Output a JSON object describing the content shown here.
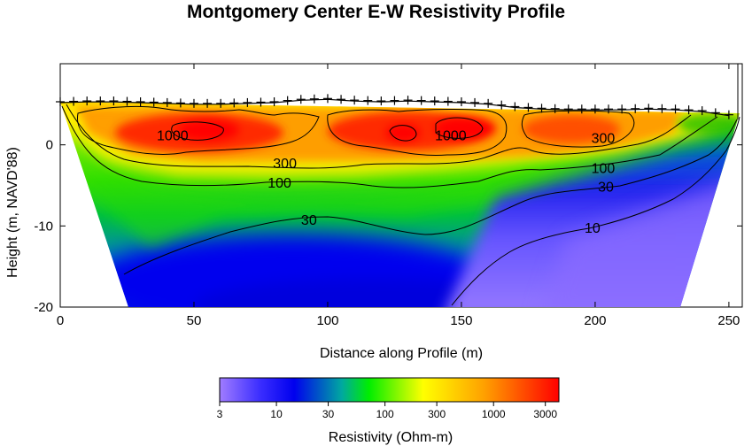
{
  "chart_data": {
    "type": "heatmap",
    "title": "Montgomery Center E-W Resistivity Profile",
    "xlabel": "Distance along Profile (m)",
    "ylabel": "Height (m, NAVD'88)",
    "xlim": [
      0,
      255
    ],
    "ylim": [
      -20,
      10
    ],
    "x_ticks": [
      "0",
      "50",
      "100",
      "150",
      "200",
      "250"
    ],
    "y_ticks": [
      "0",
      "-10",
      "-20"
    ],
    "colorbar": {
      "title": "Resistivity (Ohm-m)",
      "scale": "log",
      "range": [
        3,
        4000
      ],
      "ticks": [
        "3",
        "10",
        "30",
        "100",
        "300",
        "1000",
        "3000"
      ],
      "colors": [
        "#a07cff",
        "#2222ff",
        "#0000ee",
        "#00a8a0",
        "#00ff00",
        "#ffff00",
        "#ffa000",
        "#ff0000"
      ]
    },
    "surface_topography": {
      "x": [
        0,
        10,
        20,
        30,
        40,
        50,
        60,
        70,
        80,
        90,
        100,
        110,
        120,
        130,
        140,
        150,
        160,
        170,
        180,
        190,
        200,
        210,
        220,
        230,
        240,
        250
      ],
      "height": [
        5.2,
        5.3,
        5.3,
        5.2,
        5.1,
        5.0,
        5.0,
        5.1,
        5.2,
        5.5,
        5.6,
        5.4,
        5.3,
        5.4,
        5.3,
        5.2,
        5.0,
        4.6,
        4.4,
        4.3,
        4.3,
        4.3,
        4.4,
        4.3,
        4.1,
        3.6
      ]
    },
    "contour_lines": [
      {
        "level": "1000",
        "label_points": [
          {
            "x": 42,
            "y": 1.2
          },
          {
            "x": 146,
            "y": 1.2
          }
        ]
      },
      {
        "level": "300",
        "label_points": [
          {
            "x": 84,
            "y": -2.2
          },
          {
            "x": 203,
            "y": 0.9
          }
        ]
      },
      {
        "level": "100",
        "label_points": [
          {
            "x": 82,
            "y": -4.6
          },
          {
            "x": 203,
            "y": -2.8
          }
        ]
      },
      {
        "level": "30",
        "label_points": [
          {
            "x": 93,
            "y": -9.2
          },
          {
            "x": 204,
            "y": -5.1
          }
        ]
      },
      {
        "level": "10",
        "label_points": [
          {
            "x": 199,
            "y": -10.2
          }
        ]
      }
    ],
    "high_resistivity_zones": [
      {
        "x_range": [
          25,
          70
        ],
        "peak_ohm_m": 3500
      },
      {
        "x_range": [
          95,
          170
        ],
        "peak_ohm_m": 3500
      },
      {
        "x_range": [
          170,
          215
        ],
        "peak_ohm_m": 1500
      }
    ]
  }
}
